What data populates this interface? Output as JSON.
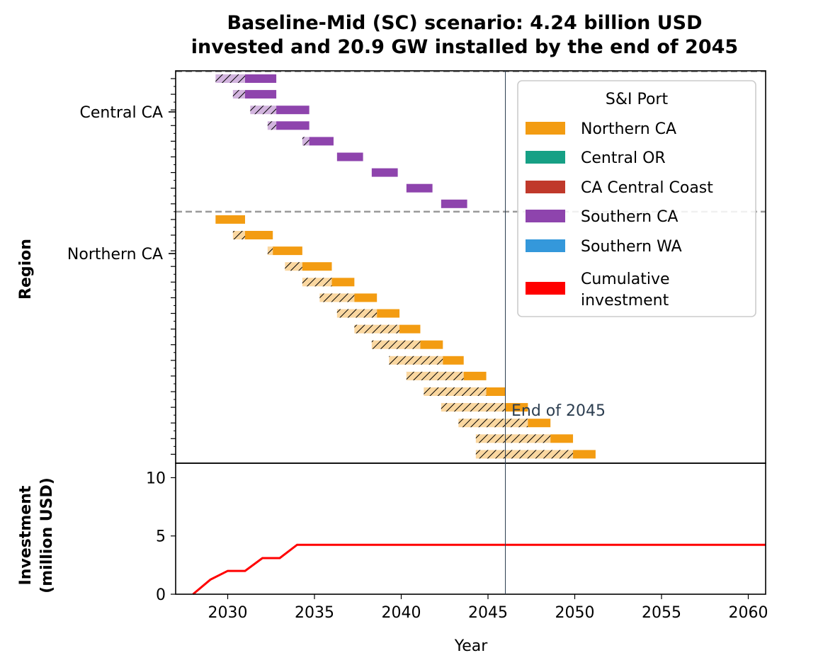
{
  "figure": {
    "title_line1": "Baseline-Mid (SC) scenario: 4.24 billion USD",
    "title_line2": "invested and 20.9 GW installed by the end of 2045"
  },
  "chart_data": [
    {
      "type": "gantt",
      "title": "Baseline-Mid (SC) scenario: 4.24 billion USD invested and 20.9 GW installed by the end of 2045",
      "ylabel": "Region",
      "ytick_labels": [
        "Central CA",
        "Northern CA"
      ],
      "xlim": [
        2027,
        2061
      ],
      "rows_total": 25,
      "region_divider_after_row": 9,
      "vline": {
        "x": 2046,
        "label": "End of 2045"
      },
      "legend": {
        "title": "S&I Port",
        "placement": "upper right",
        "entries": [
          {
            "label": "Northern CA",
            "color": "#f39c12"
          },
          {
            "label": "Central OR",
            "color": "#16a085"
          },
          {
            "label": "CA Central Coast",
            "color": "#c0392b"
          },
          {
            "label": "Southern CA",
            "color": "#8e44ad"
          },
          {
            "label": "Southern WA",
            "color": "#3498db"
          },
          {
            "label": "Cumulative\ninvestment",
            "color": "#ff0000"
          }
        ]
      },
      "bars": [
        {
          "row": 0,
          "port": "Southern CA",
          "start": 2029.3,
          "hatch_end": 2031.0,
          "end": 2032.8
        },
        {
          "row": 1,
          "port": "Southern CA",
          "start": 2030.3,
          "hatch_end": 2031.0,
          "end": 2032.8
        },
        {
          "row": 2,
          "port": "Southern CA",
          "start": 2031.3,
          "hatch_end": 2032.8,
          "end": 2034.7
        },
        {
          "row": 3,
          "port": "Southern CA",
          "start": 2032.3,
          "hatch_end": 2032.8,
          "end": 2034.7
        },
        {
          "row": 4,
          "port": "Southern CA",
          "start": 2034.3,
          "hatch_end": 2034.7,
          "end": 2036.1
        },
        {
          "row": 5,
          "port": "Southern CA",
          "start": 2036.3,
          "hatch_end": 2036.3,
          "end": 2037.8
        },
        {
          "row": 6,
          "port": "Southern CA",
          "start": 2038.3,
          "hatch_end": 2038.3,
          "end": 2039.8
        },
        {
          "row": 7,
          "port": "Southern CA",
          "start": 2040.3,
          "hatch_end": 2040.3,
          "end": 2041.8
        },
        {
          "row": 8,
          "port": "Southern CA",
          "start": 2042.3,
          "hatch_end": 2042.3,
          "end": 2043.8
        },
        {
          "row": 9,
          "port": "Northern CA",
          "start": 2029.3,
          "hatch_end": 2029.3,
          "end": 2031.0
        },
        {
          "row": 10,
          "port": "Northern CA",
          "start": 2030.3,
          "hatch_end": 2031.0,
          "end": 2032.6
        },
        {
          "row": 11,
          "port": "Northern CA",
          "start": 2032.3,
          "hatch_end": 2032.6,
          "end": 2034.3
        },
        {
          "row": 12,
          "port": "Northern CA",
          "start": 2033.3,
          "hatch_end": 2034.3,
          "end": 2036.0
        },
        {
          "row": 13,
          "port": "Northern CA",
          "start": 2034.3,
          "hatch_end": 2036.0,
          "end": 2037.3
        },
        {
          "row": 14,
          "port": "Northern CA",
          "start": 2035.3,
          "hatch_end": 2037.3,
          "end": 2038.6
        },
        {
          "row": 15,
          "port": "Northern CA",
          "start": 2036.3,
          "hatch_end": 2038.6,
          "end": 2039.9
        },
        {
          "row": 16,
          "port": "Northern CA",
          "start": 2037.3,
          "hatch_end": 2039.9,
          "end": 2041.1
        },
        {
          "row": 17,
          "port": "Northern CA",
          "start": 2038.3,
          "hatch_end": 2041.1,
          "end": 2042.4
        },
        {
          "row": 18,
          "port": "Northern CA",
          "start": 2039.3,
          "hatch_end": 2042.4,
          "end": 2043.6
        },
        {
          "row": 19,
          "port": "Northern CA",
          "start": 2040.3,
          "hatch_end": 2043.6,
          "end": 2044.9
        },
        {
          "row": 20,
          "port": "Northern CA",
          "start": 2041.3,
          "hatch_end": 2044.9,
          "end": 2046.0
        },
        {
          "row": 21,
          "port": "Northern CA",
          "start": 2042.3,
          "hatch_end": 2046.0,
          "end": 2047.3
        },
        {
          "row": 22,
          "port": "Northern CA",
          "start": 2043.3,
          "hatch_end": 2047.3,
          "end": 2048.6
        },
        {
          "row": 23,
          "port": "Northern CA",
          "start": 2044.3,
          "hatch_end": 2048.6,
          "end": 2049.9
        },
        {
          "row": 24,
          "port": "Northern CA",
          "start": 2044.3,
          "hatch_end": 2049.9,
          "end": 2051.2
        }
      ]
    },
    {
      "type": "line",
      "xlabel": "Year",
      "ylabel": "Investment\n(million USD)",
      "xlim": [
        2027,
        2061
      ],
      "ylim": [
        0,
        11
      ],
      "xticks": [
        2030,
        2035,
        2040,
        2045,
        2050,
        2055,
        2060
      ],
      "yticks": [
        0,
        5,
        10
      ],
      "series": [
        {
          "color": "#ff0000",
          "x": [
            2028,
            2029,
            2030,
            2031,
            2032,
            2033,
            2034,
            2035,
            2040,
            2045,
            2050,
            2055,
            2061
          ],
          "y": [
            0,
            1.25,
            2.0,
            2.0,
            3.1,
            3.1,
            4.24,
            4.24,
            4.24,
            4.24,
            4.24,
            4.24,
            4.24
          ]
        }
      ]
    }
  ]
}
